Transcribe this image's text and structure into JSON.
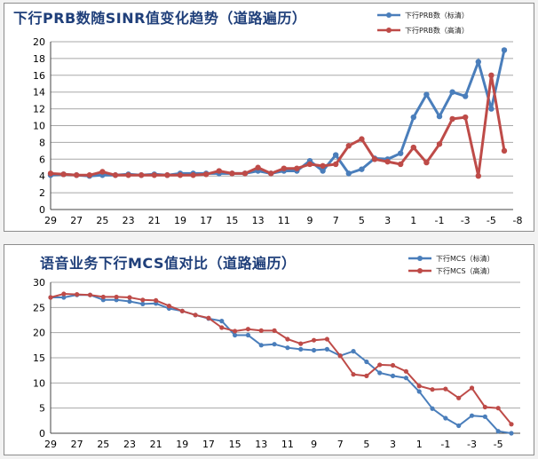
{
  "chart_data": [
    {
      "type": "line",
      "title": "下行PRB数随SINR值变化趋势（道路遍历）",
      "xlabel": "",
      "ylabel": "",
      "x": [
        29,
        28,
        27,
        26,
        25,
        24,
        23,
        22,
        21,
        20,
        19,
        18,
        17,
        16,
        15,
        14,
        13,
        12,
        11,
        10,
        9,
        8,
        7,
        6,
        5,
        4,
        3,
        2,
        1,
        0,
        -1,
        -2,
        -3,
        -4,
        -5,
        -6
      ],
      "x_ticks": [
        "29",
        "27",
        "25",
        "23",
        "21",
        "19",
        "17",
        "15",
        "13",
        "11",
        "9",
        "7",
        "5",
        "3",
        "1",
        "-1",
        "-3",
        "-5",
        "-8"
      ],
      "ylim": [
        0,
        20
      ],
      "y_ticks": [
        "0",
        "2",
        "4",
        "6",
        "8",
        "10",
        "12",
        "14",
        "16",
        "18",
        "20"
      ],
      "grid": true,
      "legend_position": "top-right",
      "series": [
        {
          "name": "下行PRB数（标清）",
          "color": "#4a7ebb",
          "values": [
            4.1,
            4.2,
            4.1,
            4.0,
            4.1,
            4.1,
            4.2,
            4.1,
            4.2,
            4.1,
            4.3,
            4.3,
            4.3,
            4.3,
            4.3,
            4.3,
            4.6,
            4.3,
            4.6,
            4.6,
            5.8,
            4.6,
            6.5,
            4.3,
            4.8,
            6.1,
            6.0,
            6.7,
            11.0,
            13.7,
            11.1,
            14.0,
            13.5,
            17.6,
            12.0,
            19.0
          ]
        },
        {
          "name": "下行PRB数（高清）",
          "color": "#be4b48",
          "values": [
            4.3,
            4.2,
            4.1,
            4.1,
            4.5,
            4.1,
            4.1,
            4.1,
            4.1,
            4.1,
            4.1,
            4.1,
            4.2,
            4.6,
            4.3,
            4.3,
            5.0,
            4.3,
            4.9,
            4.9,
            5.4,
            5.2,
            5.4,
            7.6,
            8.4,
            6.0,
            5.7,
            5.4,
            7.4,
            5.6,
            7.8,
            10.8,
            11.0,
            4.0,
            16.0,
            7.0
          ]
        }
      ]
    },
    {
      "type": "line",
      "title": "语音业务下行MCS值对比（道路遍历）",
      "xlabel": "",
      "ylabel": "",
      "x": [
        29,
        28,
        27,
        26,
        25,
        24,
        23,
        22,
        21,
        20,
        19,
        18,
        17,
        16,
        15,
        14,
        13,
        12,
        11,
        10,
        9,
        8,
        7,
        6,
        5,
        4,
        3,
        2,
        1,
        0,
        -1,
        -2,
        -3,
        -4,
        -5,
        -6
      ],
      "x_ticks": [
        "29",
        "27",
        "25",
        "23",
        "21",
        "19",
        "17",
        "15",
        "13",
        "11",
        "9",
        "7",
        "5",
        "3",
        "1",
        "-1",
        "-3",
        "-5"
      ],
      "ylim": [
        0,
        30
      ],
      "y_ticks": [
        "0",
        "5",
        "10",
        "15",
        "20",
        "25",
        "30"
      ],
      "grid": true,
      "legend_position": "top-right",
      "series": [
        {
          "name": "下行MCS（标清）",
          "color": "#4a7ebb",
          "values": [
            27.0,
            27.0,
            27.5,
            27.5,
            26.5,
            26.5,
            26.2,
            25.7,
            25.8,
            24.8,
            24.3,
            23.5,
            22.8,
            22.3,
            19.5,
            19.5,
            17.5,
            17.7,
            17.0,
            16.7,
            16.5,
            16.7,
            15.4,
            16.3,
            14.2,
            12.0,
            11.4,
            11.0,
            8.3,
            4.9,
            3.0,
            1.5,
            3.5,
            3.3,
            0.4,
            0.0
          ]
        },
        {
          "name": "下行MCS（高清）",
          "color": "#be4b48",
          "values": [
            27.0,
            27.7,
            27.6,
            27.5,
            27.1,
            27.1,
            27.0,
            26.5,
            26.4,
            25.3,
            24.3,
            23.5,
            22.9,
            21.0,
            20.3,
            20.7,
            20.4,
            20.4,
            18.7,
            17.8,
            18.5,
            18.7,
            15.4,
            11.7,
            11.4,
            13.6,
            13.5,
            12.3,
            9.4,
            8.7,
            8.8,
            7.0,
            9.0,
            5.2,
            5.0,
            1.8
          ]
        }
      ]
    }
  ]
}
